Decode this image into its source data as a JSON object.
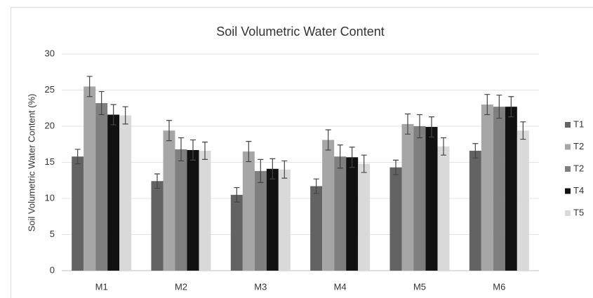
{
  "chart_data": {
    "type": "bar",
    "title": "Soil Volumetric Water Content",
    "y_label": "Soil Volumetric Water Content (%)",
    "categories": [
      "M1",
      "M2",
      "M3",
      "M4",
      "M5",
      "M6"
    ],
    "series": [
      {
        "name": "T1",
        "color": "#636363",
        "values": [
          15.8,
          12.4,
          10.5,
          11.7,
          14.3,
          16.6
        ],
        "errors": [
          1.0,
          1.0,
          1.0,
          1.0,
          1.0,
          1.0
        ]
      },
      {
        "name": "T2",
        "color": "#a6a6a6",
        "values": [
          25.5,
          19.4,
          16.5,
          18.1,
          20.3,
          23.0
        ],
        "errors": [
          1.4,
          1.4,
          1.4,
          1.4,
          1.4,
          1.4
        ]
      },
      {
        "name": "T2",
        "color": "#7f7f7f",
        "values": [
          23.2,
          16.8,
          13.8,
          15.8,
          20.0,
          22.7
        ],
        "errors": [
          1.6,
          1.6,
          1.6,
          1.6,
          1.6,
          1.6
        ]
      },
      {
        "name": "T4",
        "color": "#111111",
        "values": [
          21.6,
          16.7,
          14.1,
          15.7,
          19.9,
          22.7
        ],
        "errors": [
          1.4,
          1.4,
          1.4,
          1.4,
          1.4,
          1.4
        ]
      },
      {
        "name": "T5",
        "color": "#d9d9d9",
        "values": [
          21.5,
          16.6,
          14.0,
          14.8,
          17.2,
          19.4
        ],
        "errors": [
          1.2,
          1.2,
          1.2,
          1.2,
          1.2,
          1.2
        ]
      }
    ],
    "ylim": [
      0,
      30
    ],
    "yticks": [
      0,
      5,
      10,
      15,
      20,
      25,
      30
    ],
    "grid": true,
    "legend": "right"
  }
}
